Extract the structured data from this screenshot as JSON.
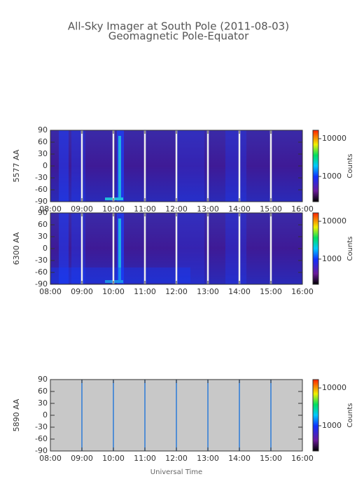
{
  "header": {
    "title": "All-Sky Imager at South Pole (2011-08-03)",
    "subtitle": "Geomagnetic Pole-Equator"
  },
  "chart_data": [
    {
      "type": "heatmap",
      "ylabel": "5577 AA",
      "ylim": [
        -90,
        90
      ],
      "yticks": [
        90,
        60,
        30,
        0,
        -30,
        -60,
        -90
      ],
      "xlim": [
        8,
        16
      ],
      "xticks": [
        {
          "value": 8,
          "label": "08:00"
        },
        {
          "value": 9,
          "label": "09:00"
        },
        {
          "value": 10,
          "label": "10:00"
        },
        {
          "value": 11,
          "label": "11:00"
        },
        {
          "value": 12,
          "label": "12:00"
        },
        {
          "value": 13,
          "label": "13:00"
        },
        {
          "value": 14,
          "label": "14:00"
        },
        {
          "value": 15,
          "label": "15:00"
        },
        {
          "value": 16,
          "label": "16:00"
        }
      ],
      "clim": [
        215,
        16700
      ],
      "cticks": [
        10000,
        1000
      ],
      "clabel": "Counts",
      "color_log": true
    },
    {
      "type": "heatmap",
      "ylabel": "6300 AA",
      "ylim": [
        -90,
        90
      ],
      "yticks": [
        90,
        60,
        30,
        0,
        -30,
        -60,
        -90
      ],
      "xlim": [
        8,
        16
      ],
      "xticks": [
        {
          "value": 8,
          "label": "08:00"
        },
        {
          "value": 9,
          "label": "09:00"
        },
        {
          "value": 10,
          "label": "10:00"
        },
        {
          "value": 11,
          "label": "11:00"
        },
        {
          "value": 12,
          "label": "12:00"
        },
        {
          "value": 13,
          "label": "13:00"
        },
        {
          "value": 14,
          "label": "14:00"
        },
        {
          "value": 15,
          "label": "15:00"
        },
        {
          "value": 16,
          "label": "16:00"
        }
      ],
      "clim": [
        215,
        16700
      ],
      "cticks": [
        10000,
        1000
      ],
      "clabel": "Counts",
      "color_log": true
    },
    {
      "type": "heatmap",
      "ylabel": "5890 AA",
      "ylim": [
        -90,
        90
      ],
      "yticks": [
        90,
        60,
        30,
        0,
        -30,
        -60,
        -90
      ],
      "xlim": [
        8,
        16
      ],
      "xticks": [
        {
          "value": 8,
          "label": "08:00"
        },
        {
          "value": 9,
          "label": "09:00"
        },
        {
          "value": 10,
          "label": "10:00"
        },
        {
          "value": 11,
          "label": "11:00"
        },
        {
          "value": 12,
          "label": "12:00"
        },
        {
          "value": 13,
          "label": "13:00"
        },
        {
          "value": 14,
          "label": "14:00"
        },
        {
          "value": 15,
          "label": "15:00"
        },
        {
          "value": 16,
          "label": "16:00"
        }
      ],
      "clim": [
        215,
        16700
      ],
      "cticks": [
        10000,
        1000
      ],
      "clabel": "Counts",
      "color_log": true,
      "xlabel": "Universal Time"
    }
  ]
}
